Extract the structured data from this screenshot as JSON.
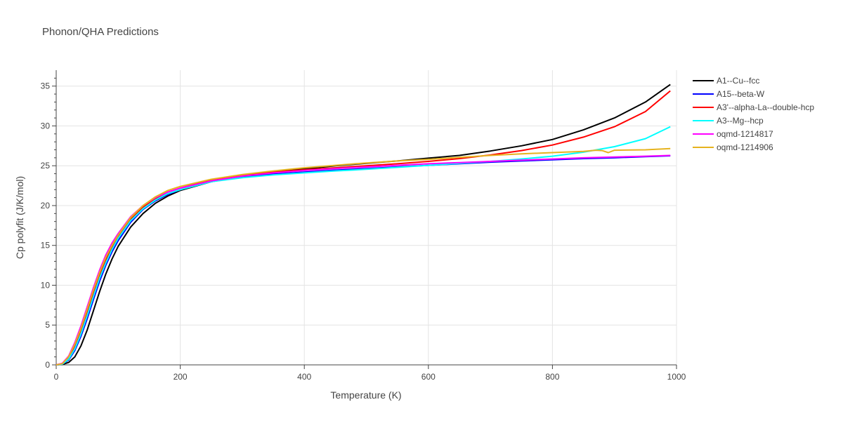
{
  "chart_data": {
    "type": "line",
    "title": "Phonon/QHA Predictions",
    "xlabel": "Temperature (K)",
    "ylabel": "Cp polyfit (J/K/mol)",
    "xlim": [
      0,
      1000
    ],
    "ylim": [
      0,
      37
    ],
    "xticks": [
      0,
      200,
      400,
      600,
      800,
      1000
    ],
    "yticks": [
      0,
      5,
      10,
      15,
      20,
      25,
      30,
      35
    ],
    "grid": true,
    "legend_position": "top-right",
    "series": [
      {
        "name": "A1--Cu--fcc",
        "color": "#000000",
        "x": [
          0,
          10,
          20,
          30,
          40,
          50,
          60,
          70,
          80,
          90,
          100,
          120,
          140,
          160,
          180,
          200,
          250,
          300,
          350,
          400,
          450,
          500,
          550,
          600,
          650,
          700,
          750,
          800,
          850,
          900,
          950,
          990
        ],
        "y": [
          0,
          0.05,
          0.3,
          1.0,
          2.4,
          4.4,
          6.8,
          9.2,
          11.4,
          13.3,
          14.9,
          17.3,
          19.0,
          20.3,
          21.2,
          21.9,
          23.0,
          23.7,
          24.2,
          24.6,
          25.0,
          25.3,
          25.6,
          25.95,
          26.3,
          26.85,
          27.5,
          28.3,
          29.5,
          31.0,
          33.0,
          35.2
        ]
      },
      {
        "name": "A15--beta-W",
        "color": "#0000ff",
        "x": [
          0,
          10,
          20,
          30,
          40,
          50,
          60,
          70,
          80,
          90,
          100,
          120,
          140,
          160,
          180,
          200,
          250,
          300,
          350,
          400,
          450,
          500,
          550,
          600,
          650,
          700,
          750,
          800,
          850,
          900,
          950,
          990
        ],
        "y": [
          0,
          0.1,
          0.6,
          1.8,
          3.6,
          5.8,
          8.2,
          10.5,
          12.5,
          14.2,
          15.6,
          17.9,
          19.5,
          20.6,
          21.4,
          22.0,
          23.0,
          23.6,
          23.95,
          24.2,
          24.45,
          24.65,
          24.85,
          25.05,
          25.25,
          25.45,
          25.6,
          25.75,
          25.9,
          26.0,
          26.15,
          26.25
        ]
      },
      {
        "name": "A3'--alpha-La--double-hcp",
        "color": "#ff0000",
        "x": [
          0,
          10,
          20,
          30,
          40,
          50,
          60,
          70,
          80,
          90,
          100,
          120,
          140,
          160,
          180,
          200,
          250,
          300,
          350,
          400,
          450,
          500,
          550,
          600,
          650,
          700,
          750,
          800,
          850,
          900,
          950,
          990
        ],
        "y": [
          0,
          0.15,
          0.9,
          2.4,
          4.4,
          6.7,
          9.1,
          11.3,
          13.2,
          14.8,
          16.1,
          18.3,
          19.8,
          20.9,
          21.7,
          22.2,
          23.2,
          23.8,
          24.2,
          24.5,
          24.75,
          25.0,
          25.25,
          25.55,
          25.9,
          26.35,
          26.9,
          27.6,
          28.6,
          29.9,
          31.8,
          34.4
        ]
      },
      {
        "name": "A3--Mg--hcp",
        "color": "#00ffff",
        "x": [
          0,
          10,
          20,
          30,
          40,
          50,
          60,
          70,
          80,
          90,
          100,
          120,
          140,
          160,
          180,
          200,
          250,
          300,
          350,
          400,
          450,
          500,
          550,
          600,
          650,
          700,
          750,
          800,
          850,
          900,
          950,
          990
        ],
        "y": [
          0,
          0.1,
          0.7,
          2.0,
          3.9,
          6.2,
          8.6,
          10.9,
          12.8,
          14.5,
          15.9,
          18.1,
          19.6,
          20.7,
          21.5,
          22.0,
          23.0,
          23.5,
          23.85,
          24.1,
          24.35,
          24.55,
          24.8,
          25.05,
          25.3,
          25.55,
          25.85,
          26.2,
          26.7,
          27.4,
          28.4,
          29.9
        ]
      },
      {
        "name": "oqmd-1214817",
        "color": "#ff00ff",
        "x": [
          0,
          10,
          20,
          30,
          40,
          50,
          60,
          70,
          80,
          90,
          100,
          120,
          140,
          160,
          180,
          200,
          250,
          300,
          350,
          400,
          450,
          500,
          550,
          600,
          650,
          700,
          750,
          800,
          850,
          900,
          950,
          990
        ],
        "y": [
          0,
          0.2,
          1.1,
          2.8,
          4.9,
          7.3,
          9.7,
          11.9,
          13.8,
          15.3,
          16.5,
          18.6,
          20.0,
          21.0,
          21.7,
          22.2,
          23.1,
          23.7,
          24.1,
          24.4,
          24.65,
          24.85,
          25.05,
          25.25,
          25.4,
          25.55,
          25.7,
          25.85,
          26.0,
          26.1,
          26.2,
          26.3
        ]
      },
      {
        "name": "oqmd-1214906",
        "color": "#e6b31e",
        "x": [
          0,
          10,
          20,
          30,
          40,
          50,
          60,
          70,
          80,
          90,
          100,
          120,
          140,
          160,
          180,
          200,
          250,
          300,
          350,
          400,
          450,
          500,
          550,
          600,
          650,
          700,
          750,
          800,
          850,
          870,
          880,
          890,
          900,
          950,
          990
        ],
        "y": [
          0,
          0.15,
          1.0,
          2.6,
          4.6,
          7.0,
          9.4,
          11.6,
          13.5,
          15.0,
          16.3,
          18.5,
          20.0,
          21.1,
          21.9,
          22.4,
          23.3,
          23.9,
          24.35,
          24.75,
          25.05,
          25.35,
          25.6,
          25.8,
          26.05,
          26.3,
          26.5,
          26.65,
          26.8,
          26.95,
          26.9,
          26.65,
          26.95,
          27.0,
          27.15
        ]
      }
    ]
  }
}
